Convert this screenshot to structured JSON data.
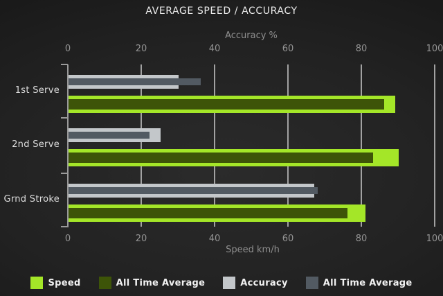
{
  "chart_data": {
    "type": "bar",
    "orientation": "horizontal",
    "title": "AVERAGE SPEED / ACCURACY",
    "categories": [
      "1st Serve",
      "2nd Serve",
      "Grnd Stroke"
    ],
    "series": [
      {
        "name": "Speed",
        "axis": "bottom",
        "role": "outer-speed",
        "color": "#a4e628",
        "values": [
          89,
          90,
          81
        ]
      },
      {
        "name": "All Time Average",
        "axis": "bottom",
        "role": "inner-speed",
        "color": "#3d5408",
        "values": [
          86,
          83,
          76
        ]
      },
      {
        "name": "Accuracy",
        "axis": "top",
        "role": "outer-accuracy",
        "color": "#c3c7ca",
        "values": [
          30,
          25,
          67
        ]
      },
      {
        "name": "All Time Average",
        "axis": "top",
        "role": "inner-accuracy",
        "color": "#525a62",
        "values": [
          36,
          22,
          68
        ]
      }
    ],
    "top_axis": {
      "label": "Accuracy %",
      "ticks": [
        0,
        20,
        40,
        60,
        80,
        100
      ],
      "range": [
        0,
        100
      ]
    },
    "bottom_axis": {
      "label": "Speed km/h",
      "ticks": [
        0,
        20,
        40,
        60,
        80,
        100
      ],
      "range": [
        0,
        100
      ]
    },
    "legend": [
      "Speed",
      "All Time Average",
      "Accuracy",
      "All Time Average"
    ],
    "legend_position": "bottom",
    "grid": true,
    "colors": {
      "background": "#1f1f1f",
      "speed": "#a4e628",
      "speed_all_time_average": "#3d5408",
      "accuracy": "#c3c7ca",
      "accuracy_all_time_average": "#525a62",
      "grid": "#a2a2a2",
      "text": "#ebebeb",
      "muted_text": "#8f8f8f"
    }
  }
}
